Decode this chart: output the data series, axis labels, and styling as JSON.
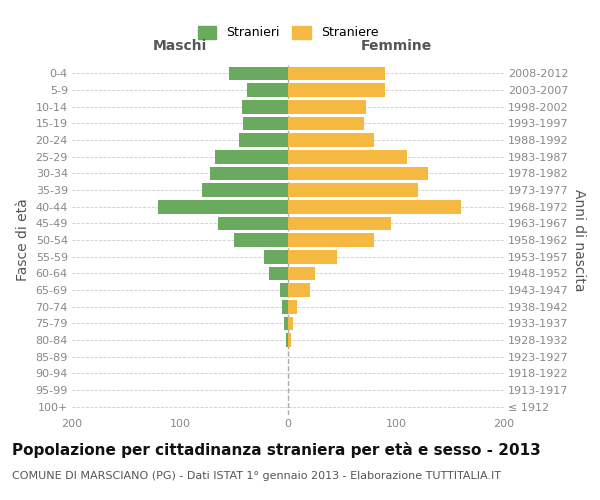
{
  "age_groups": [
    "100+",
    "95-99",
    "90-94",
    "85-89",
    "80-84",
    "75-79",
    "70-74",
    "65-69",
    "60-64",
    "55-59",
    "50-54",
    "45-49",
    "40-44",
    "35-39",
    "30-34",
    "25-29",
    "20-24",
    "15-19",
    "10-14",
    "5-9",
    "0-4"
  ],
  "birth_years": [
    "≤ 1912",
    "1913-1917",
    "1918-1922",
    "1923-1927",
    "1928-1932",
    "1933-1937",
    "1938-1942",
    "1943-1947",
    "1948-1952",
    "1953-1957",
    "1958-1962",
    "1963-1967",
    "1968-1972",
    "1973-1977",
    "1978-1982",
    "1983-1987",
    "1988-1992",
    "1993-1997",
    "1998-2002",
    "2003-2007",
    "2008-2012"
  ],
  "maschi": [
    0,
    0,
    0,
    0,
    2,
    4,
    6,
    7,
    18,
    22,
    50,
    65,
    120,
    80,
    72,
    68,
    45,
    42,
    43,
    38,
    55
  ],
  "femmine": [
    0,
    0,
    0,
    0,
    3,
    5,
    8,
    20,
    25,
    45,
    80,
    95,
    160,
    120,
    130,
    110,
    80,
    70,
    72,
    90,
    90
  ],
  "color_maschi": "#6aaa5e",
  "color_femmine": "#f5b942",
  "title": "Popolazione per cittadinanza straniera per età e sesso - 2013",
  "subtitle": "COMUNE DI MARSCIANO (PG) - Dati ISTAT 1° gennaio 2013 - Elaborazione TUTTITALIA.IT",
  "xlabel_maschi": "Maschi",
  "xlabel_femmine": "Femmine",
  "ylabel_left": "Fasce di età",
  "ylabel_right": "Anni di nascita",
  "legend_maschi": "Stranieri",
  "legend_femmine": "Straniere",
  "xlim": 200,
  "background_color": "#ffffff",
  "grid_color": "#cccccc",
  "bar_height": 0.82,
  "title_fontsize": 11,
  "subtitle_fontsize": 8,
  "tick_fontsize": 8,
  "label_fontsize": 10
}
